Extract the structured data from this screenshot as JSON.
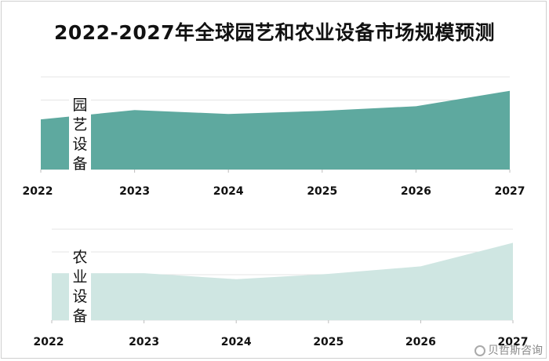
{
  "title": "2022-2027年全球园艺和农业设备市场规模预测",
  "watermark": "贝哲斯咨询",
  "colors": {
    "garden": "#5ea99f",
    "agri": "#cfe6e2"
  },
  "chart_data": [
    {
      "type": "area",
      "label": "园艺设备",
      "label_chars": [
        "园",
        "艺",
        "设",
        "备"
      ],
      "x": [
        "2022",
        "2023",
        "2024",
        "2025",
        "2026",
        "2027"
      ],
      "values": [
        65,
        77,
        72,
        76,
        82,
        102
      ],
      "ylim": [
        0,
        120
      ],
      "grid": true
    },
    {
      "type": "area",
      "label": "农业设备",
      "label_chars": [
        "农",
        "业",
        "设",
        "备"
      ],
      "x": [
        "2022",
        "2023",
        "2024",
        "2025",
        "2026",
        "2027"
      ],
      "values": [
        62,
        62,
        54,
        61,
        71,
        102
      ],
      "ylim": [
        0,
        120
      ],
      "grid": true
    }
  ]
}
